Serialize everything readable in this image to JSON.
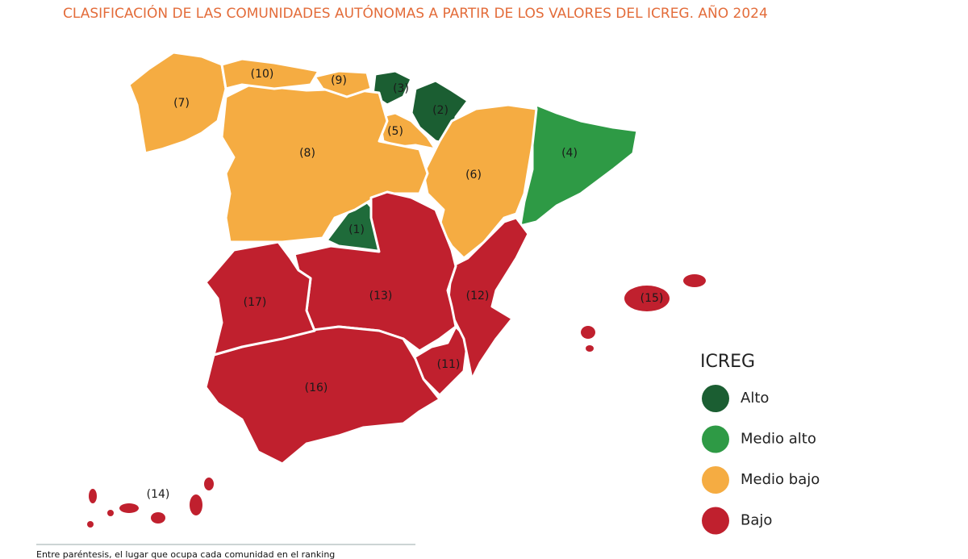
{
  "title": "CLASIFICACIÓN DE LAS COMUNIDADES AUTÓNOMAS A PARTIR DE LOS VALORES DEL ICREG. AÑO 2024",
  "regions": [
    {
      "label": "(1)",
      "color": "#1f6b3a"
    },
    {
      "label": "(2)",
      "color": "#1b5e32"
    },
    {
      "label": "(3)",
      "color": "#1b5e32"
    },
    {
      "label": "(4)",
      "color": "#2e9a45"
    },
    {
      "label": "(5)",
      "color": "#f5ac42"
    },
    {
      "label": "(6)",
      "color": "#f5ac42"
    },
    {
      "label": "(7)",
      "color": "#f5ac42"
    },
    {
      "label": "(8)",
      "color": "#f5ac42"
    },
    {
      "label": "(9)",
      "color": "#f5ac42"
    },
    {
      "label": "(10)",
      "color": "#f5ac42"
    },
    {
      "label": "(11)",
      "color": "#c0202e"
    },
    {
      "label": "(12)",
      "color": "#c0202e"
    },
    {
      "label": "(13)",
      "color": "#c0202e"
    },
    {
      "label": "(14)",
      "color": "#c0202e"
    },
    {
      "label": "(15)",
      "color": "#c0202e"
    },
    {
      "label": "(16)",
      "color": "#c0202e"
    },
    {
      "label": "(17)",
      "color": "#c0202e"
    }
  ],
  "legend": {
    "title": "ICREG",
    "items": [
      {
        "label": "Alto",
        "color": "#1b5e32"
      },
      {
        "label": "Medio alto",
        "color": "#2e9a45"
      },
      {
        "label": "Medio bajo",
        "color": "#f5ac42"
      },
      {
        "label": "Bajo",
        "color": "#c0202e"
      }
    ]
  },
  "footnote": "Entre paréntesis, el lugar que ocupa cada comunidad en el ranking"
}
